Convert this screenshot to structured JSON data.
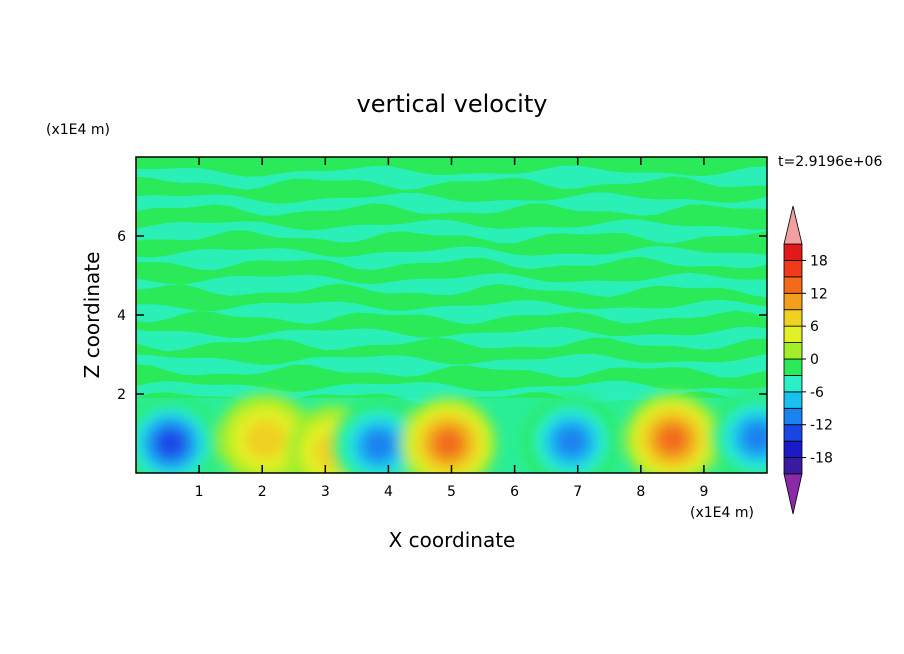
{
  "chart_data": {
    "type": "heatmap",
    "title": "vertical velocity",
    "xlabel": "X coordinate",
    "ylabel": "Z coordinate",
    "x_unit": "(x1E4 m)",
    "y_unit": "(x1E4 m)",
    "time_label": "t=2.9196e+06",
    "xlim": [
      0,
      10
    ],
    "ylim": [
      0,
      8
    ],
    "x_ticks": [
      1,
      2,
      3,
      4,
      5,
      6,
      7,
      8,
      9
    ],
    "y_ticks": [
      2,
      4,
      6
    ],
    "colorbar": {
      "levels": [
        -21,
        -18,
        -15,
        -12,
        -9,
        -6,
        -3,
        0,
        3,
        6,
        9,
        12,
        15,
        18,
        21
      ],
      "tick_labels": [
        "-18",
        "-12",
        "-6",
        "0",
        "6",
        "12",
        "18"
      ],
      "colors": [
        "#8a2aa6",
        "#3a1a9e",
        "#1a1ac8",
        "#1a46e6",
        "#1a82f0",
        "#1ac0f0",
        "#2af0c8",
        "#2aea5a",
        "#a2ee2a",
        "#e2f028",
        "#f0d020",
        "#f2a01c",
        "#f26a1a",
        "#f03a1a",
        "#e01a1a",
        "#f0a0a0"
      ]
    },
    "cells": [
      {
        "x": 0.55,
        "z": 0.75,
        "peak": -14
      },
      {
        "x": 2.05,
        "z": 0.85,
        "peak": 7
      },
      {
        "x": 3.15,
        "z": 0.55,
        "peak": 9
      },
      {
        "x": 3.85,
        "z": 0.7,
        "peak": -11
      },
      {
        "x": 4.95,
        "z": 0.75,
        "peak": 13
      },
      {
        "x": 6.9,
        "z": 0.8,
        "peak": -12
      },
      {
        "x": 8.5,
        "z": 0.85,
        "peak": 14
      },
      {
        "x": 9.85,
        "z": 0.9,
        "peak": -11
      }
    ]
  }
}
